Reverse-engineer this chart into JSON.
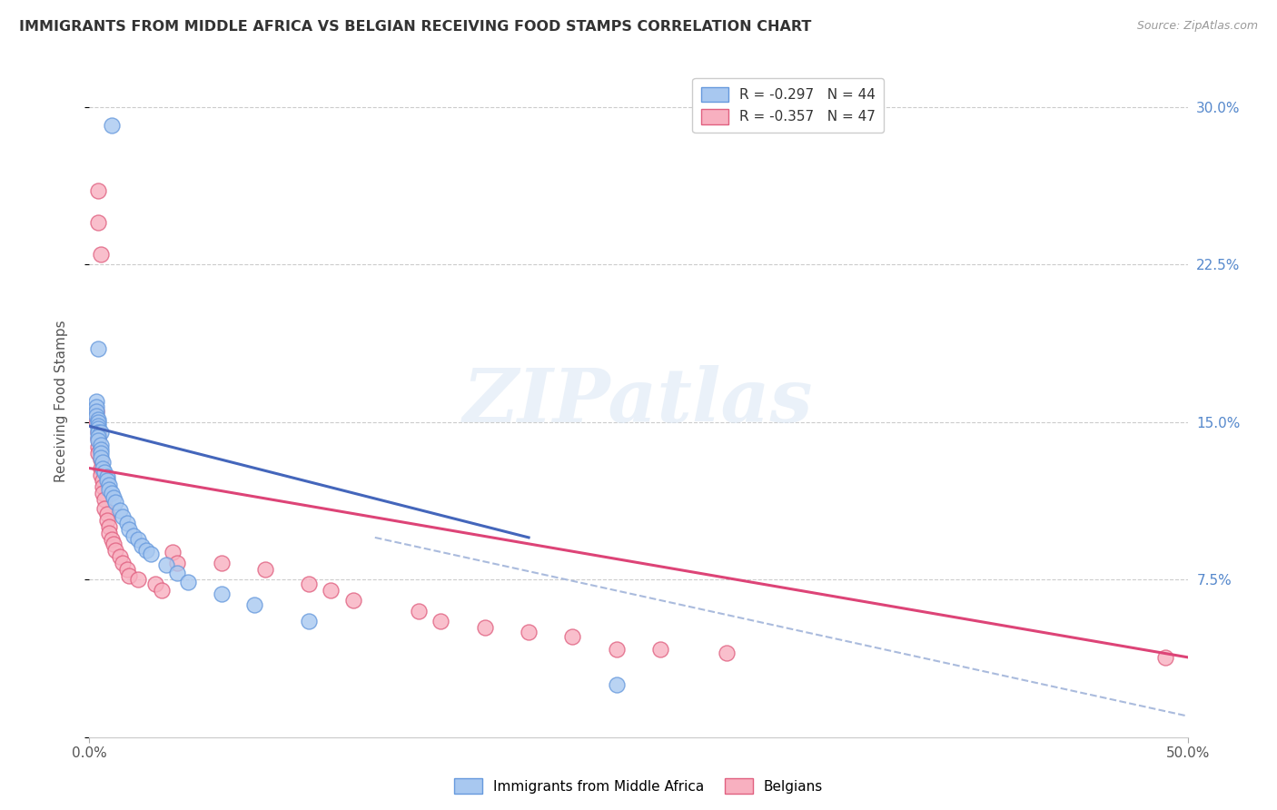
{
  "title": "IMMIGRANTS FROM MIDDLE AFRICA VS BELGIAN RECEIVING FOOD STAMPS CORRELATION CHART",
  "source": "Source: ZipAtlas.com",
  "ylabel": "Receiving Food Stamps",
  "ytick_values": [
    0.0,
    0.075,
    0.15,
    0.225,
    0.3
  ],
  "ytick_labels": [
    "",
    "7.5%",
    "15.0%",
    "22.5%",
    "30.0%"
  ],
  "xlim": [
    0.0,
    0.5
  ],
  "ylim": [
    0.0,
    0.32
  ],
  "xtick_positions": [
    0.0,
    0.5
  ],
  "xtick_labels": [
    "0.0%",
    "50.0%"
  ],
  "legend_blue_r": "R = -0.297",
  "legend_blue_n": "N = 44",
  "legend_pink_r": "R = -0.357",
  "legend_pink_n": "N = 47",
  "blue_fill": "#a8c8f0",
  "blue_edge": "#6699dd",
  "pink_fill": "#f8b0c0",
  "pink_edge": "#e06080",
  "trendline_blue_color": "#4466bb",
  "trendline_pink_color": "#dd4477",
  "trendline_dash_color": "#aabbdd",
  "watermark_text": "ZIPatlas",
  "blue_scatter": [
    [
      0.01,
      0.291
    ],
    [
      0.004,
      0.185
    ],
    [
      0.003,
      0.16
    ],
    [
      0.003,
      0.157
    ],
    [
      0.003,
      0.155
    ],
    [
      0.003,
      0.153
    ],
    [
      0.004,
      0.151
    ],
    [
      0.004,
      0.15
    ],
    [
      0.004,
      0.148
    ],
    [
      0.004,
      0.147
    ],
    [
      0.004,
      0.145
    ],
    [
      0.005,
      0.145
    ],
    [
      0.004,
      0.143
    ],
    [
      0.004,
      0.141
    ],
    [
      0.005,
      0.139
    ],
    [
      0.005,
      0.137
    ],
    [
      0.005,
      0.135
    ],
    [
      0.005,
      0.133
    ],
    [
      0.006,
      0.131
    ],
    [
      0.006,
      0.128
    ],
    [
      0.007,
      0.126
    ],
    [
      0.008,
      0.124
    ],
    [
      0.008,
      0.122
    ],
    [
      0.009,
      0.12
    ],
    [
      0.009,
      0.118
    ],
    [
      0.01,
      0.116
    ],
    [
      0.011,
      0.114
    ],
    [
      0.012,
      0.112
    ],
    [
      0.014,
      0.108
    ],
    [
      0.015,
      0.105
    ],
    [
      0.017,
      0.102
    ],
    [
      0.018,
      0.099
    ],
    [
      0.02,
      0.096
    ],
    [
      0.022,
      0.094
    ],
    [
      0.024,
      0.091
    ],
    [
      0.026,
      0.089
    ],
    [
      0.028,
      0.087
    ],
    [
      0.035,
      0.082
    ],
    [
      0.04,
      0.078
    ],
    [
      0.045,
      0.074
    ],
    [
      0.06,
      0.068
    ],
    [
      0.075,
      0.063
    ],
    [
      0.1,
      0.055
    ],
    [
      0.24,
      0.025
    ]
  ],
  "pink_scatter": [
    [
      0.004,
      0.26
    ],
    [
      0.004,
      0.245
    ],
    [
      0.005,
      0.23
    ],
    [
      0.003,
      0.155
    ],
    [
      0.003,
      0.15
    ],
    [
      0.004,
      0.145
    ],
    [
      0.004,
      0.142
    ],
    [
      0.004,
      0.138
    ],
    [
      0.004,
      0.135
    ],
    [
      0.005,
      0.132
    ],
    [
      0.005,
      0.128
    ],
    [
      0.005,
      0.125
    ],
    [
      0.006,
      0.122
    ],
    [
      0.006,
      0.119
    ],
    [
      0.006,
      0.116
    ],
    [
      0.007,
      0.113
    ],
    [
      0.007,
      0.109
    ],
    [
      0.008,
      0.106
    ],
    [
      0.008,
      0.103
    ],
    [
      0.009,
      0.1
    ],
    [
      0.009,
      0.097
    ],
    [
      0.01,
      0.094
    ],
    [
      0.011,
      0.092
    ],
    [
      0.012,
      0.089
    ],
    [
      0.014,
      0.086
    ],
    [
      0.015,
      0.083
    ],
    [
      0.017,
      0.08
    ],
    [
      0.018,
      0.077
    ],
    [
      0.022,
      0.075
    ],
    [
      0.03,
      0.073
    ],
    [
      0.033,
      0.07
    ],
    [
      0.038,
      0.088
    ],
    [
      0.04,
      0.083
    ],
    [
      0.06,
      0.083
    ],
    [
      0.08,
      0.08
    ],
    [
      0.1,
      0.073
    ],
    [
      0.11,
      0.07
    ],
    [
      0.12,
      0.065
    ],
    [
      0.15,
      0.06
    ],
    [
      0.16,
      0.055
    ],
    [
      0.18,
      0.052
    ],
    [
      0.2,
      0.05
    ],
    [
      0.22,
      0.048
    ],
    [
      0.24,
      0.042
    ],
    [
      0.26,
      0.042
    ],
    [
      0.29,
      0.04
    ],
    [
      0.49,
      0.038
    ]
  ],
  "blue_trendline_x": [
    0.0,
    0.2
  ],
  "blue_trendline_y": [
    0.148,
    0.095
  ],
  "pink_trendline_x": [
    0.0,
    0.5
  ],
  "pink_trendline_y": [
    0.128,
    0.038
  ],
  "dash_trendline_x": [
    0.13,
    0.5
  ],
  "dash_trendline_y": [
    0.095,
    0.01
  ]
}
